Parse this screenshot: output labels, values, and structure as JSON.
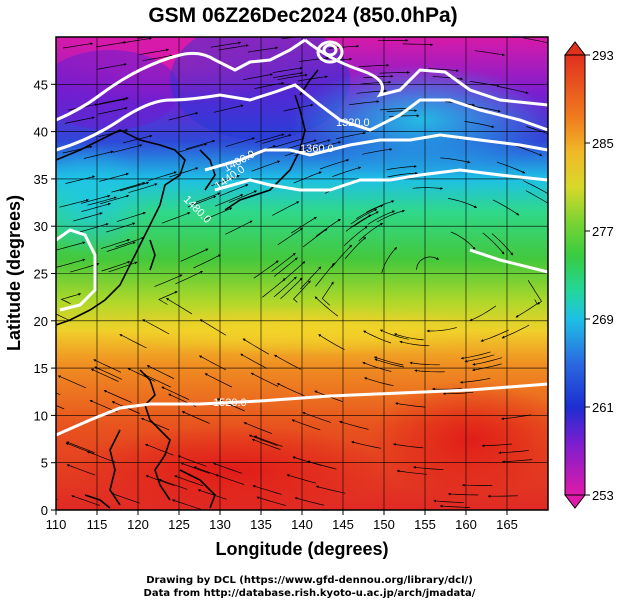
{
  "title": "GSM 06Z26Dec2024 (850.0hPa)",
  "axes": {
    "x_label": "Longitude (degrees)",
    "y_label": "Latitude (degrees)",
    "x_ticks": [
      "110",
      "115",
      "120",
      "125",
      "130",
      "135",
      "140",
      "145",
      "150",
      "155",
      "160",
      "165"
    ],
    "y_ticks": [
      "0",
      "5",
      "10",
      "15",
      "20",
      "25",
      "30",
      "35",
      "40",
      "45"
    ],
    "x_range": [
      110,
      170
    ],
    "y_range": [
      0,
      50
    ]
  },
  "colorbar": {
    "ticks": [
      "293",
      "285",
      "277",
      "269",
      "261",
      "253"
    ],
    "range": [
      253,
      293
    ],
    "colors": [
      "#e0159e",
      "#6a1fcc",
      "#1833d8",
      "#1fb6e0",
      "#22d98c",
      "#3cc83c",
      "#a4d92a",
      "#f0d22a",
      "#f08a1a",
      "#e6461c",
      "#d82020"
    ]
  },
  "contours": [
    {
      "label": "1320.0",
      "lat_at": 44.5,
      "color": "#ffffff"
    },
    {
      "label": "1360.0",
      "lat_at": 41.5,
      "color": "#ffffff"
    },
    {
      "label": "1400.0",
      "lat_at": 38.5,
      "color": "#ffffff"
    },
    {
      "label": "1440.0",
      "lat_at": 36.5,
      "color": "#ffffff"
    },
    {
      "label": "1480.0",
      "lat_at": 34.5,
      "color": "#ffffff"
    },
    {
      "label": "1520.0",
      "lat_at": 10.5,
      "color": "#ffffff"
    }
  ],
  "contour_label_text": [
    "1320.0",
    "1360.0",
    "1400.0",
    "1440.0",
    "1480.0",
    "1520.0"
  ],
  "credits": {
    "line1": "Drawing by DCL (https://www.gfd-dennou.org/library/dcl/)",
    "line2": "Data from http://database.rish.kyoto-u.ac.jp/arch/jmadata/"
  }
}
